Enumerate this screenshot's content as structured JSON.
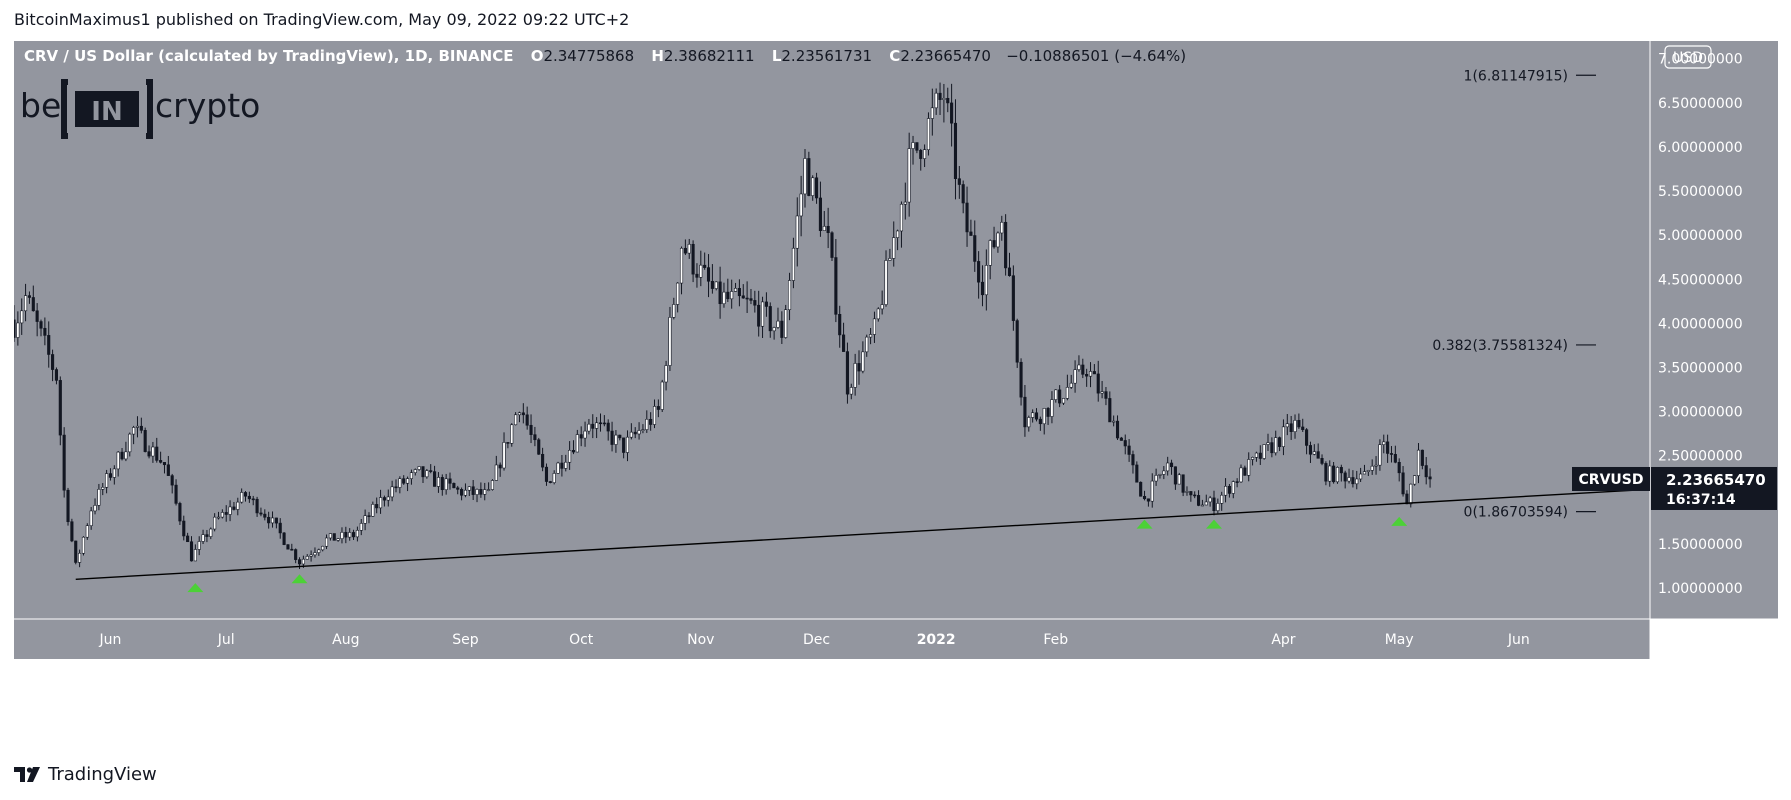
{
  "header": {
    "published_by": "BitcoinMaximus1 published on TradingView.com, May 09, 2022 09:22 UTC+2"
  },
  "footer": {
    "brand": "TradingView",
    "logo_icon": "tradingview-logo-icon"
  },
  "watermark": {
    "text_left": "be",
    "text_box": "IN",
    "text_right": "crypto"
  },
  "symbol_info": {
    "title": "CRV / US Dollar (calculated by TradingView), 1D, BINANCE",
    "open_key": "O",
    "open": "2.34775868",
    "high_key": "H",
    "high": "2.38682111",
    "low_key": "L",
    "low": "2.23561731",
    "close_key": "C",
    "close": "2.23665470",
    "change": "−0.10886501 (−4.64%)"
  },
  "currency_button": "USD",
  "price_badge": {
    "symbol": "CRVUSD",
    "price": "2.23665470",
    "countdown": "16:37:14"
  },
  "colors": {
    "background": "#93969f",
    "up": "#ffffff",
    "down": "#131722",
    "marker": "#4cd137",
    "badge": "#131722"
  },
  "chart_data": {
    "type": "candlestick",
    "title": "CRV / US Dollar (calculated by TradingView), 1D, BINANCE",
    "x_tick_labels": [
      "Jun",
      "Jul",
      "Aug",
      "Sep",
      "Oct",
      "Nov",
      "Dec",
      "2022",
      "Feb",
      "Apr",
      "May",
      "Jun"
    ],
    "x_tick_dates": [
      "2021-06-01",
      "2021-07-01",
      "2021-08-01",
      "2021-09-01",
      "2021-10-01",
      "2021-11-01",
      "2021-12-01",
      "2022-01-01",
      "2022-02-01",
      "2022-04-01",
      "2022-05-01",
      "2022-06-01"
    ],
    "x_range": [
      "2021-05-07",
      "2022-07-05"
    ],
    "ylim": [
      0.65,
      7.2
    ],
    "y_ticks": [
      {
        "value": 1.0,
        "label": "1.00000000"
      },
      {
        "value": 1.5,
        "label": "1.50000000"
      },
      {
        "value": 2.0,
        "label": "2.00000000"
      },
      {
        "value": 2.5,
        "label": "2.50000000"
      },
      {
        "value": 3.0,
        "label": "3.00000000"
      },
      {
        "value": 3.5,
        "label": "3.50000000"
      },
      {
        "value": 4.0,
        "label": "4.00000000"
      },
      {
        "value": 4.5,
        "label": "4.50000000"
      },
      {
        "value": 5.0,
        "label": "5.00000000"
      },
      {
        "value": 5.5,
        "label": "5.50000000"
      },
      {
        "value": 6.0,
        "label": "6.00000000"
      },
      {
        "value": 6.5,
        "label": "6.50000000"
      },
      {
        "value": 7.0,
        "label": "7.00000000"
      }
    ],
    "anchors": [
      {
        "date": "2021-05-07",
        "price": 4.0
      },
      {
        "date": "2021-05-10",
        "price": 4.3
      },
      {
        "date": "2021-05-18",
        "price": 3.4
      },
      {
        "date": "2021-05-20",
        "price": 2.1
      },
      {
        "date": "2021-05-23",
        "price": 1.25
      },
      {
        "date": "2021-05-27",
        "price": 1.9
      },
      {
        "date": "2021-06-01",
        "price": 2.3
      },
      {
        "date": "2021-06-07",
        "price": 2.8
      },
      {
        "date": "2021-06-15",
        "price": 2.4
      },
      {
        "date": "2021-06-22",
        "price": 1.35
      },
      {
        "date": "2021-06-28",
        "price": 1.75
      },
      {
        "date": "2021-07-06",
        "price": 2.05
      },
      {
        "date": "2021-07-12",
        "price": 1.8
      },
      {
        "date": "2021-07-20",
        "price": 1.3
      },
      {
        "date": "2021-07-27",
        "price": 1.55
      },
      {
        "date": "2021-08-03",
        "price": 1.6
      },
      {
        "date": "2021-08-12",
        "price": 2.1
      },
      {
        "date": "2021-08-20",
        "price": 2.3
      },
      {
        "date": "2021-08-30",
        "price": 2.1
      },
      {
        "date": "2021-09-07",
        "price": 2.05
      },
      {
        "date": "2021-09-15",
        "price": 3.1
      },
      {
        "date": "2021-09-22",
        "price": 2.2
      },
      {
        "date": "2021-10-03",
        "price": 2.9
      },
      {
        "date": "2021-10-12",
        "price": 2.6
      },
      {
        "date": "2021-10-21",
        "price": 3.0
      },
      {
        "date": "2021-10-27",
        "price": 4.9
      },
      {
        "date": "2021-11-05",
        "price": 4.3
      },
      {
        "date": "2021-11-14",
        "price": 4.2
      },
      {
        "date": "2021-11-22",
        "price": 3.9
      },
      {
        "date": "2021-11-28",
        "price": 5.8
      },
      {
        "date": "2021-12-04",
        "price": 4.9
      },
      {
        "date": "2021-12-09",
        "price": 3.3
      },
      {
        "date": "2021-12-16",
        "price": 3.9
      },
      {
        "date": "2021-12-25",
        "price": 5.8
      },
      {
        "date": "2022-01-03",
        "price": 6.6
      },
      {
        "date": "2022-01-08",
        "price": 5.2
      },
      {
        "date": "2022-01-13",
        "price": 4.5
      },
      {
        "date": "2022-01-18",
        "price": 5.2
      },
      {
        "date": "2022-01-24",
        "price": 2.9
      },
      {
        "date": "2022-01-29",
        "price": 3.0
      },
      {
        "date": "2022-02-09",
        "price": 3.5
      },
      {
        "date": "2022-02-15",
        "price": 3.0
      },
      {
        "date": "2022-02-24",
        "price": 2.0
      },
      {
        "date": "2022-03-02",
        "price": 2.4
      },
      {
        "date": "2022-03-08",
        "price": 2.0
      },
      {
        "date": "2022-03-14",
        "price": 1.95
      },
      {
        "date": "2022-03-21",
        "price": 2.3
      },
      {
        "date": "2022-04-04",
        "price": 2.85
      },
      {
        "date": "2022-04-12",
        "price": 2.3
      },
      {
        "date": "2022-04-22",
        "price": 2.25
      },
      {
        "date": "2022-04-27",
        "price": 2.65
      },
      {
        "date": "2022-05-01",
        "price": 2.3
      },
      {
        "date": "2022-05-03",
        "price": 1.95
      },
      {
        "date": "2022-05-06",
        "price": 2.55
      },
      {
        "date": "2022-05-09",
        "price": 2.24
      }
    ],
    "support_line": {
      "start": {
        "date": "2021-05-23",
        "price": 1.1
      },
      "end": {
        "date": "2022-07-05",
        "price": 2.12
      }
    },
    "fib_levels": [
      {
        "ratio": 1,
        "price": 6.81147915,
        "label": "1(6.81147915)"
      },
      {
        "ratio": 0.382,
        "price": 3.75581324,
        "label": "0.382(3.75581324)"
      },
      {
        "ratio": 0,
        "price": 1.86703594,
        "label": "0(1.86703594)"
      }
    ],
    "markers": [
      {
        "date": "2021-06-23",
        "price": 1.0
      },
      {
        "date": "2021-07-20",
        "price": 1.1
      },
      {
        "date": "2022-02-24",
        "price": 1.72
      },
      {
        "date": "2022-03-14",
        "price": 1.72
      },
      {
        "date": "2022-05-01",
        "price": 1.75
      }
    ],
    "last_price": 2.2366547
  }
}
